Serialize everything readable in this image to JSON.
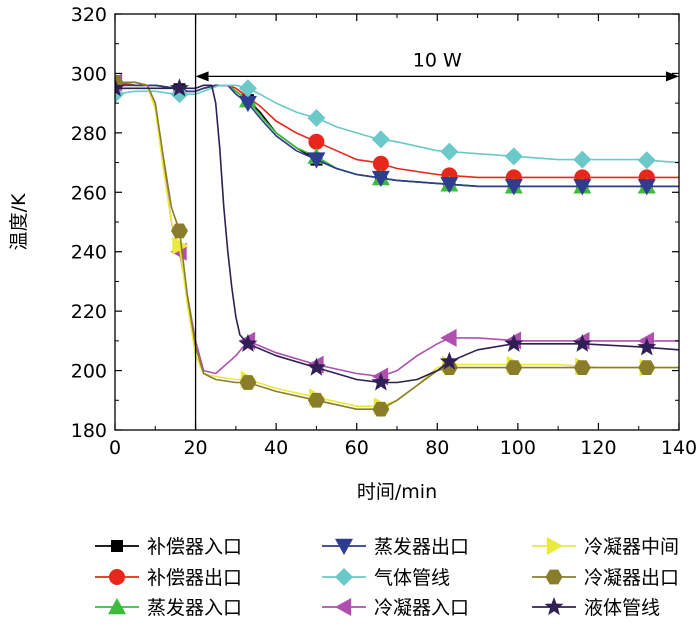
{
  "chart_data": {
    "type": "line",
    "xlabel": "时间/min",
    "ylabel": "温度/K",
    "xlim": [
      0,
      140
    ],
    "ylim": [
      180,
      320
    ],
    "x_ticks": [
      0,
      20,
      40,
      60,
      80,
      100,
      120,
      140
    ],
    "y_ticks": [
      180,
      200,
      220,
      240,
      260,
      280,
      300,
      320
    ],
    "grid": false,
    "legend_position": "bottom",
    "annotation": {
      "text": "10 W",
      "x_start": 20,
      "x_end": 140,
      "y": 299,
      "vline_x": 20
    },
    "series": [
      {
        "name": "补偿器入口",
        "color": "#000000",
        "marker": "square",
        "points": [
          [
            0,
            297
          ],
          [
            5,
            296
          ],
          [
            10,
            296
          ],
          [
            15,
            295
          ],
          [
            18,
            294
          ],
          [
            20,
            294
          ],
          [
            22,
            295
          ],
          [
            25,
            296
          ],
          [
            28,
            296
          ],
          [
            30,
            294
          ],
          [
            33,
            291
          ],
          [
            36,
            287
          ],
          [
            40,
            280
          ],
          [
            45,
            275
          ],
          [
            50,
            271
          ],
          [
            55,
            268
          ],
          [
            60,
            266
          ],
          [
            65,
            265
          ],
          [
            70,
            264
          ],
          [
            80,
            263
          ],
          [
            90,
            262
          ],
          [
            100,
            262
          ],
          [
            120,
            262
          ],
          [
            140,
            262
          ]
        ],
        "marker_x": [
          16,
          33,
          50,
          66,
          83,
          99,
          116,
          132
        ]
      },
      {
        "name": "补偿器出口",
        "color": "#e8271c",
        "marker": "circle",
        "points": [
          [
            0,
            297
          ],
          [
            5,
            296
          ],
          [
            10,
            296
          ],
          [
            15,
            295
          ],
          [
            18,
            294
          ],
          [
            20,
            294
          ],
          [
            22,
            295
          ],
          [
            25,
            296
          ],
          [
            28,
            296
          ],
          [
            30,
            295
          ],
          [
            33,
            292
          ],
          [
            36,
            289
          ],
          [
            40,
            284
          ],
          [
            45,
            280
          ],
          [
            50,
            277
          ],
          [
            55,
            274
          ],
          [
            60,
            271
          ],
          [
            65,
            270
          ],
          [
            70,
            268
          ],
          [
            80,
            266
          ],
          [
            90,
            265
          ],
          [
            100,
            265
          ],
          [
            120,
            265
          ],
          [
            140,
            265
          ]
        ],
        "marker_x": [
          50,
          66,
          83,
          99,
          116,
          132
        ]
      },
      {
        "name": "蒸发器入口",
        "color": "#3bbd3b",
        "marker": "triangle-up",
        "points": [
          [
            0,
            296
          ],
          [
            5,
            296
          ],
          [
            10,
            296
          ],
          [
            15,
            295
          ],
          [
            18,
            294
          ],
          [
            20,
            294
          ],
          [
            22,
            295
          ],
          [
            25,
            296
          ],
          [
            28,
            296
          ],
          [
            30,
            294
          ],
          [
            33,
            291
          ],
          [
            36,
            286
          ],
          [
            40,
            280
          ],
          [
            45,
            275
          ],
          [
            50,
            272
          ],
          [
            55,
            268
          ],
          [
            60,
            266
          ],
          [
            65,
            265
          ],
          [
            70,
            264
          ],
          [
            80,
            263
          ],
          [
            90,
            262
          ],
          [
            100,
            262
          ],
          [
            120,
            262
          ],
          [
            140,
            262
          ]
        ],
        "marker_x": [
          33,
          50,
          66,
          83,
          99,
          116,
          132
        ]
      },
      {
        "name": "蒸发器出口",
        "color": "#2e3d8f",
        "marker": "triangle-down",
        "points": [
          [
            0,
            296
          ],
          [
            5,
            296
          ],
          [
            10,
            296
          ],
          [
            15,
            295
          ],
          [
            18,
            294
          ],
          [
            20,
            294
          ],
          [
            22,
            295
          ],
          [
            25,
            296
          ],
          [
            28,
            296
          ],
          [
            30,
            293
          ],
          [
            33,
            290
          ],
          [
            36,
            285
          ],
          [
            40,
            279
          ],
          [
            45,
            274
          ],
          [
            50,
            271
          ],
          [
            55,
            268
          ],
          [
            60,
            266
          ],
          [
            65,
            265
          ],
          [
            70,
            264
          ],
          [
            80,
            263
          ],
          [
            90,
            262
          ],
          [
            100,
            262
          ],
          [
            120,
            262
          ],
          [
            140,
            262
          ]
        ],
        "marker_x": [
          33,
          50,
          66,
          83,
          99,
          116,
          132
        ]
      },
      {
        "name": "气体管线",
        "color": "#6cc9c9",
        "marker": "diamond",
        "points": [
          [
            0,
            293
          ],
          [
            5,
            294
          ],
          [
            10,
            294
          ],
          [
            15,
            293
          ],
          [
            18,
            293
          ],
          [
            20,
            293
          ],
          [
            22,
            294
          ],
          [
            26,
            296
          ],
          [
            30,
            296
          ],
          [
            33,
            295
          ],
          [
            36,
            293
          ],
          [
            40,
            290
          ],
          [
            45,
            287
          ],
          [
            50,
            285
          ],
          [
            55,
            282
          ],
          [
            60,
            280
          ],
          [
            65,
            278
          ],
          [
            70,
            277
          ],
          [
            80,
            274
          ],
          [
            90,
            273
          ],
          [
            100,
            272
          ],
          [
            110,
            271
          ],
          [
            120,
            271
          ],
          [
            130,
            271
          ],
          [
            140,
            270
          ]
        ],
        "marker_x": [
          0,
          16,
          33,
          50,
          66,
          83,
          99,
          116,
          132
        ]
      },
      {
        "name": "冷凝器入口",
        "color": "#b04fb0",
        "marker": "triangle-left",
        "points": [
          [
            0,
            297
          ],
          [
            5,
            297
          ],
          [
            8,
            296
          ],
          [
            10,
            290
          ],
          [
            12,
            270
          ],
          [
            14,
            250
          ],
          [
            16,
            240
          ],
          [
            18,
            225
          ],
          [
            20,
            210
          ],
          [
            22,
            200
          ],
          [
            25,
            199
          ],
          [
            30,
            205
          ],
          [
            33,
            210
          ],
          [
            40,
            206
          ],
          [
            50,
            202
          ],
          [
            60,
            199
          ],
          [
            66,
            198
          ],
          [
            70,
            200
          ],
          [
            75,
            205
          ],
          [
            80,
            209
          ],
          [
            83,
            211
          ],
          [
            90,
            211
          ],
          [
            100,
            210
          ],
          [
            110,
            210
          ],
          [
            120,
            210
          ],
          [
            130,
            210
          ],
          [
            140,
            210
          ]
        ],
        "marker_x": [
          0,
          16,
          33,
          50,
          66,
          83,
          99,
          116,
          132
        ]
      },
      {
        "name": "冷凝器中间",
        "color": "#eaea3c",
        "marker": "triangle-right",
        "points": [
          [
            0,
            297
          ],
          [
            5,
            297
          ],
          [
            8,
            296
          ],
          [
            10,
            288
          ],
          [
            12,
            268
          ],
          [
            14,
            250
          ],
          [
            16,
            242
          ],
          [
            18,
            222
          ],
          [
            20,
            205
          ],
          [
            22,
            199
          ],
          [
            25,
            198
          ],
          [
            30,
            197
          ],
          [
            33,
            197
          ],
          [
            40,
            194
          ],
          [
            50,
            191
          ],
          [
            60,
            188
          ],
          [
            66,
            188
          ],
          [
            70,
            190
          ],
          [
            75,
            195
          ],
          [
            80,
            201
          ],
          [
            83,
            202
          ],
          [
            90,
            202
          ],
          [
            100,
            202
          ],
          [
            110,
            202
          ],
          [
            120,
            201
          ],
          [
            130,
            201
          ],
          [
            140,
            201
          ]
        ],
        "marker_x": [
          0,
          16,
          33,
          50,
          66,
          83,
          99,
          116,
          132
        ]
      },
      {
        "name": "冷凝器出口",
        "color": "#8a7d2a",
        "marker": "hexagon",
        "points": [
          [
            0,
            297
          ],
          [
            5,
            297
          ],
          [
            8,
            296
          ],
          [
            10,
            290
          ],
          [
            12,
            272
          ],
          [
            14,
            255
          ],
          [
            16,
            247
          ],
          [
            18,
            225
          ],
          [
            20,
            208
          ],
          [
            22,
            199
          ],
          [
            25,
            197
          ],
          [
            30,
            196
          ],
          [
            33,
            196
          ],
          [
            40,
            193
          ],
          [
            50,
            190
          ],
          [
            60,
            187
          ],
          [
            66,
            187
          ],
          [
            70,
            190
          ],
          [
            75,
            195
          ],
          [
            80,
            200
          ],
          [
            83,
            201
          ],
          [
            90,
            201
          ],
          [
            100,
            201
          ],
          [
            110,
            201
          ],
          [
            120,
            201
          ],
          [
            130,
            201
          ],
          [
            140,
            201
          ]
        ],
        "marker_x": [
          0,
          16,
          33,
          50,
          66,
          83,
          99,
          116,
          132
        ]
      },
      {
        "name": "液体管线",
        "color": "#2f1f55",
        "marker": "star",
        "points": [
          [
            0,
            295
          ],
          [
            5,
            295
          ],
          [
            10,
            295
          ],
          [
            16,
            295
          ],
          [
            20,
            295
          ],
          [
            22,
            296
          ],
          [
            24,
            296
          ],
          [
            25,
            290
          ],
          [
            26,
            275
          ],
          [
            27,
            255
          ],
          [
            28,
            240
          ],
          [
            29,
            228
          ],
          [
            30,
            218
          ],
          [
            31,
            212
          ],
          [
            33,
            209
          ],
          [
            40,
            205
          ],
          [
            50,
            201
          ],
          [
            60,
            197
          ],
          [
            66,
            196
          ],
          [
            70,
            196
          ],
          [
            75,
            197
          ],
          [
            80,
            200
          ],
          [
            83,
            203
          ],
          [
            90,
            207
          ],
          [
            99,
            209
          ],
          [
            110,
            209
          ],
          [
            116,
            209
          ],
          [
            130,
            208
          ],
          [
            140,
            207
          ]
        ],
        "marker_x": [
          0,
          16,
          33,
          50,
          66,
          83,
          99,
          116,
          132
        ]
      }
    ]
  }
}
